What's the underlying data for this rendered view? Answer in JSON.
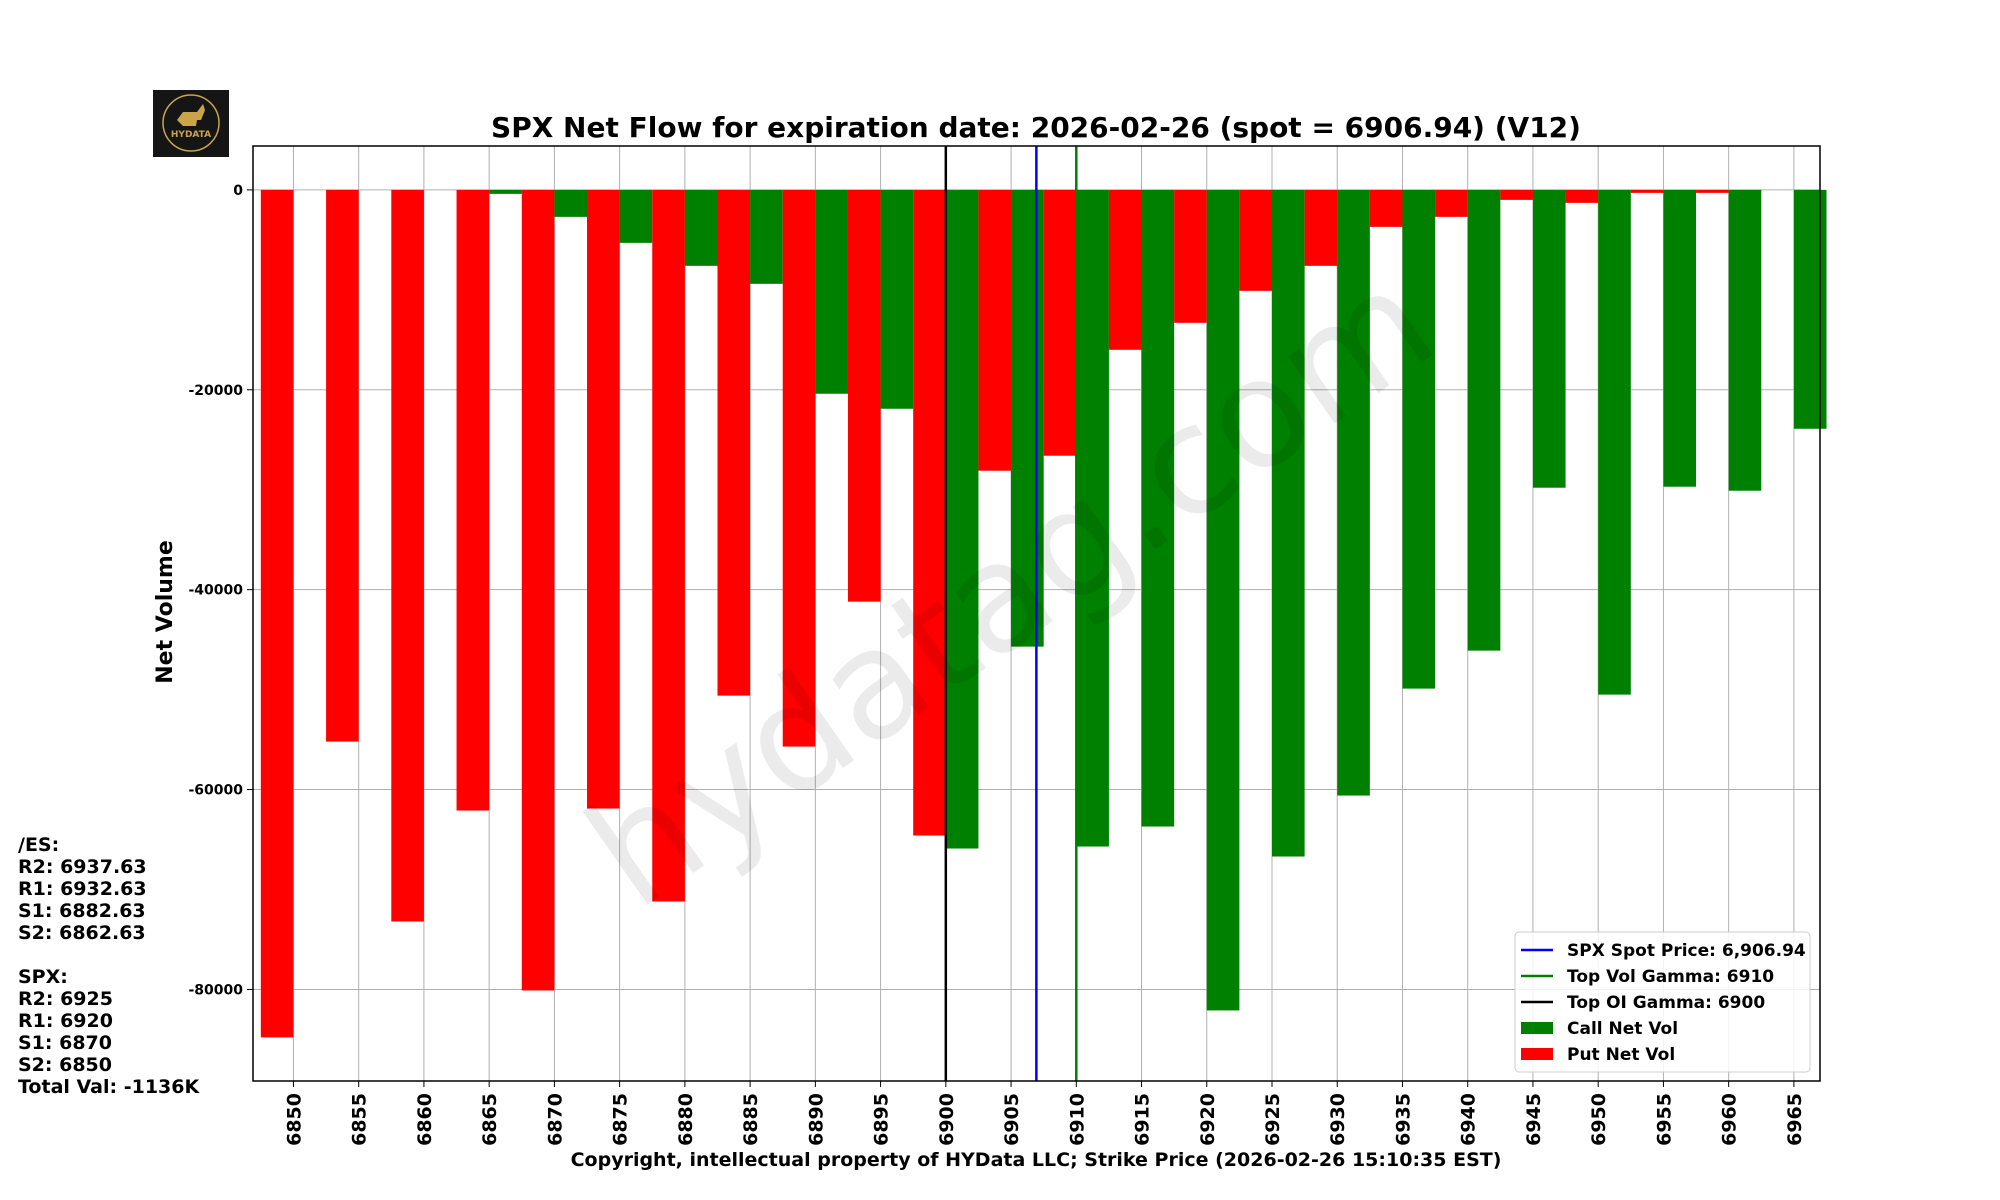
{
  "chart_data": {
    "type": "bar",
    "title": "SPX Net Flow for expiration date: 2026-02-26 (spot = 6906.94) (V12)",
    "xlabel": "Copyright, intellectual property of HYData LLC; Strike Price (2026-02-26 15:10:35 EST)",
    "ylabel": "Net Volume",
    "categories": [
      6850,
      6855,
      6860,
      6865,
      6870,
      6875,
      6880,
      6885,
      6890,
      6895,
      6900,
      6905,
      6910,
      6915,
      6920,
      6925,
      6930,
      6935,
      6940,
      6945,
      6950,
      6955,
      6960,
      6965
    ],
    "series": [
      {
        "name": "Call Net Vol",
        "color": "#008000",
        "values": [
          0,
          0,
          0,
          -400,
          -2700,
          -5300,
          -7600,
          -9400,
          -20400,
          -21900,
          -65900,
          -45700,
          -65700,
          -63700,
          -82100,
          -66700,
          -60600,
          -49900,
          -46100,
          -29800,
          -50500,
          -29700,
          -30100,
          -23900
        ]
      },
      {
        "name": "Put Net Vol",
        "color": "#ff0000",
        "values": [
          -84800,
          -55200,
          -73200,
          -62100,
          -80100,
          -61900,
          -71200,
          -50600,
          -55700,
          -41200,
          -64600,
          -28100,
          -26600,
          -16000,
          -13300,
          -10100,
          -7600,
          -3700,
          -2700,
          -1000,
          -1300,
          -300,
          -300,
          0
        ]
      }
    ],
    "lines": [
      {
        "name": "SPX Spot Price: 6,906.94",
        "x": 6906.94,
        "color": "#0000ff"
      },
      {
        "name": "Top Vol Gamma: 6910",
        "x": 6910,
        "color": "#008000"
      },
      {
        "name": "Top OI Gamma: 6900",
        "x": 6900,
        "color": "#000000"
      }
    ],
    "yticks": [
      0,
      -20000,
      -40000,
      -60000,
      -80000
    ],
    "ylim": [
      -89160,
      4390
    ],
    "xlim": [
      6846.9,
      6967.0
    ],
    "grid": true,
    "legend": "bottom-right",
    "watermark": "hydatag.com"
  },
  "logo_text": "HYDATA",
  "side": {
    "es_head": "/ES:",
    "es": [
      "R2: 6937.63",
      "R1: 6932.63",
      "S1: 6882.63",
      "S2: 6862.63"
    ],
    "spx_head": "SPX:",
    "spx": [
      "R2: 6925",
      "R1: 6920",
      "S1: 6870",
      "S2: 6850"
    ],
    "total": "Total Val: -1136K"
  }
}
